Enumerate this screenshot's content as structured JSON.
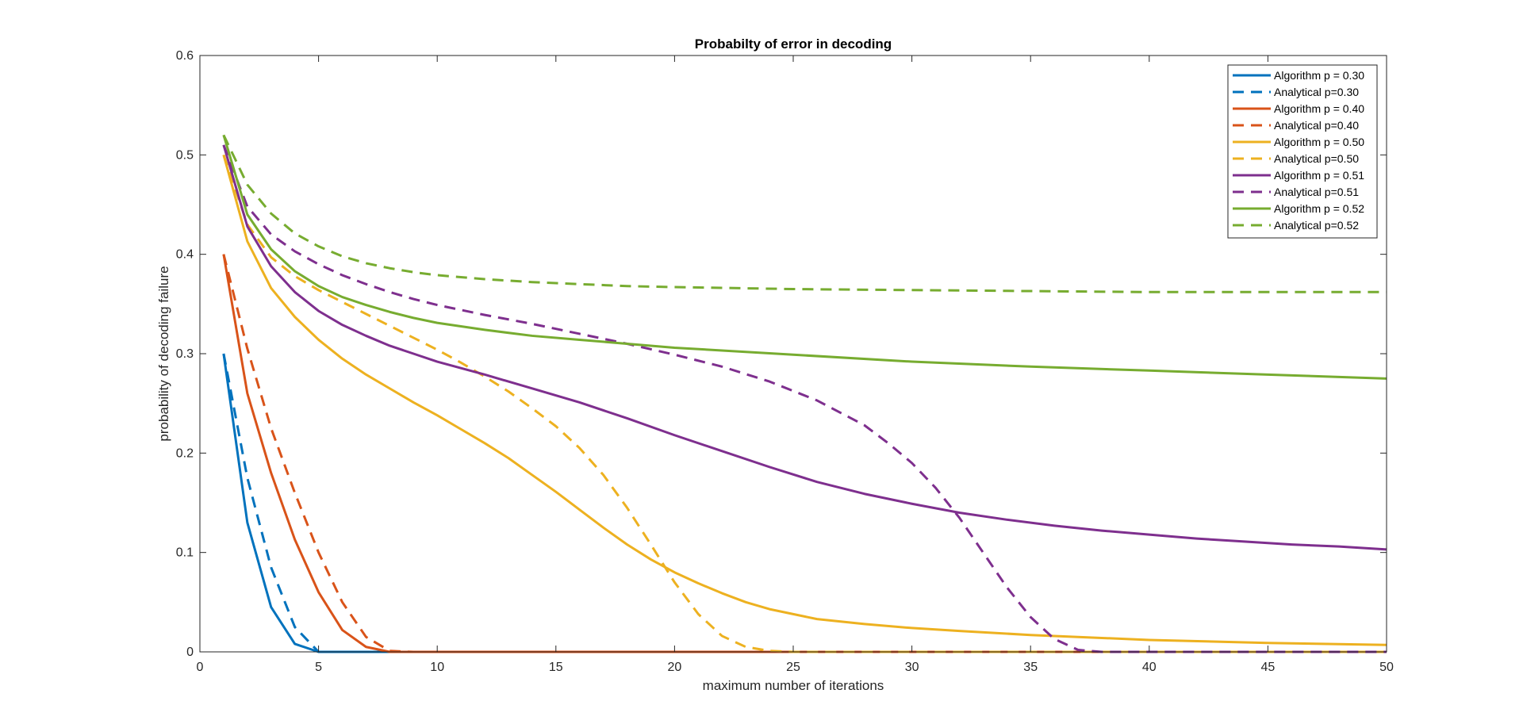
{
  "chart_data": {
    "type": "line",
    "title": "Probabilty of error in decoding",
    "xlabel": "maximum number of iterations",
    "ylabel": "probability of decoding failure",
    "xlim": [
      0,
      50
    ],
    "ylim": [
      0,
      0.6
    ],
    "xticks": [
      "0",
      "5",
      "10",
      "15",
      "20",
      "25",
      "30",
      "35",
      "40",
      "45",
      "50"
    ],
    "yticks": [
      "0",
      "0.1",
      "0.2",
      "0.3",
      "0.4",
      "0.5",
      "0.6"
    ],
    "grid": false,
    "legend_position": "top-right",
    "series": [
      {
        "name": "Algorithm p = 0.30",
        "color": "#0072BD",
        "style": "solid",
        "points": [
          [
            1,
            0.3
          ],
          [
            2,
            0.13
          ],
          [
            3,
            0.045
          ],
          [
            4,
            0.008
          ],
          [
            5,
            0.0
          ],
          [
            6,
            0.0
          ],
          [
            7,
            0.0
          ],
          [
            8,
            0.0
          ],
          [
            9,
            0.0
          ],
          [
            10,
            0.0
          ],
          [
            15,
            0.0
          ],
          [
            20,
            0.0
          ],
          [
            25,
            0.0
          ],
          [
            30,
            0.0
          ],
          [
            35,
            0.0
          ],
          [
            40,
            0.0
          ],
          [
            45,
            0.0
          ],
          [
            50,
            0.0
          ]
        ]
      },
      {
        "name": "Analytical p=0.30",
        "color": "#0072BD",
        "style": "dashed",
        "points": [
          [
            1,
            0.3
          ],
          [
            2,
            0.175
          ],
          [
            3,
            0.085
          ],
          [
            4,
            0.025
          ],
          [
            5,
            0.0
          ],
          [
            6,
            0.0
          ],
          [
            7,
            0.0
          ],
          [
            8,
            0.0
          ],
          [
            10,
            0.0
          ],
          [
            15,
            0.0
          ],
          [
            20,
            0.0
          ],
          [
            25,
            0.0
          ],
          [
            30,
            0.0
          ],
          [
            35,
            0.0
          ],
          [
            40,
            0.0
          ],
          [
            45,
            0.0
          ],
          [
            50,
            0.0
          ]
        ]
      },
      {
        "name": "Algorithm p = 0.40",
        "color": "#D95319",
        "style": "solid",
        "points": [
          [
            1,
            0.4
          ],
          [
            2,
            0.26
          ],
          [
            3,
            0.18
          ],
          [
            4,
            0.113
          ],
          [
            5,
            0.06
          ],
          [
            6,
            0.022
          ],
          [
            7,
            0.005
          ],
          [
            8,
            0.0
          ],
          [
            9,
            0.0
          ],
          [
            10,
            0.0
          ],
          [
            15,
            0.0
          ],
          [
            20,
            0.0
          ],
          [
            25,
            0.0
          ],
          [
            30,
            0.0
          ],
          [
            35,
            0.0
          ],
          [
            40,
            0.0
          ],
          [
            45,
            0.0
          ],
          [
            50,
            0.0
          ]
        ]
      },
      {
        "name": "Analytical p=0.40",
        "color": "#D95319",
        "style": "dashed",
        "points": [
          [
            1,
            0.4
          ],
          [
            2,
            0.305
          ],
          [
            3,
            0.225
          ],
          [
            4,
            0.16
          ],
          [
            5,
            0.1
          ],
          [
            6,
            0.05
          ],
          [
            7,
            0.015
          ],
          [
            8,
            0.001
          ],
          [
            9,
            0.0
          ],
          [
            10,
            0.0
          ],
          [
            15,
            0.0
          ],
          [
            20,
            0.0
          ],
          [
            25,
            0.0
          ],
          [
            30,
            0.0
          ],
          [
            35,
            0.0
          ],
          [
            40,
            0.0
          ],
          [
            45,
            0.0
          ],
          [
            50,
            0.0
          ]
        ]
      },
      {
        "name": "Algorithm p = 0.50",
        "color": "#EDB120",
        "style": "solid",
        "points": [
          [
            1,
            0.5
          ],
          [
            2,
            0.413
          ],
          [
            3,
            0.366
          ],
          [
            4,
            0.337
          ],
          [
            5,
            0.314
          ],
          [
            6,
            0.295
          ],
          [
            7,
            0.279
          ],
          [
            8,
            0.265
          ],
          [
            9,
            0.251
          ],
          [
            10,
            0.238
          ],
          [
            11,
            0.224
          ],
          [
            12,
            0.21
          ],
          [
            13,
            0.195
          ],
          [
            14,
            0.178
          ],
          [
            15,
            0.161
          ],
          [
            16,
            0.143
          ],
          [
            17,
            0.125
          ],
          [
            18,
            0.108
          ],
          [
            19,
            0.093
          ],
          [
            20,
            0.08
          ],
          [
            21,
            0.069
          ],
          [
            22,
            0.059
          ],
          [
            23,
            0.05
          ],
          [
            24,
            0.043
          ],
          [
            25,
            0.038
          ],
          [
            26,
            0.033
          ],
          [
            28,
            0.028
          ],
          [
            30,
            0.024
          ],
          [
            32,
            0.021
          ],
          [
            35,
            0.017
          ],
          [
            40,
            0.012
          ],
          [
            45,
            0.009
          ],
          [
            50,
            0.007
          ]
        ]
      },
      {
        "name": "Analytical p=0.50",
        "color": "#EDB120",
        "style": "dashed",
        "points": [
          [
            1,
            0.5
          ],
          [
            2,
            0.43
          ],
          [
            3,
            0.397
          ],
          [
            4,
            0.378
          ],
          [
            5,
            0.364
          ],
          [
            6,
            0.352
          ],
          [
            7,
            0.34
          ],
          [
            8,
            0.328
          ],
          [
            9,
            0.316
          ],
          [
            10,
            0.304
          ],
          [
            11,
            0.291
          ],
          [
            12,
            0.277
          ],
          [
            13,
            0.262
          ],
          [
            14,
            0.245
          ],
          [
            15,
            0.227
          ],
          [
            16,
            0.205
          ],
          [
            17,
            0.178
          ],
          [
            18,
            0.145
          ],
          [
            19,
            0.108
          ],
          [
            20,
            0.07
          ],
          [
            21,
            0.038
          ],
          [
            22,
            0.016
          ],
          [
            23,
            0.005
          ],
          [
            24,
            0.001
          ],
          [
            25,
            0.0
          ],
          [
            30,
            0.0
          ],
          [
            35,
            0.0
          ],
          [
            40,
            0.0
          ],
          [
            45,
            0.0
          ],
          [
            50,
            0.0
          ]
        ]
      },
      {
        "name": "Algorithm p = 0.51",
        "color": "#7E2F8E",
        "style": "solid",
        "points": [
          [
            1,
            0.51
          ],
          [
            2,
            0.428
          ],
          [
            3,
            0.388
          ],
          [
            4,
            0.362
          ],
          [
            5,
            0.343
          ],
          [
            6,
            0.329
          ],
          [
            7,
            0.318
          ],
          [
            8,
            0.308
          ],
          [
            9,
            0.3
          ],
          [
            10,
            0.292
          ],
          [
            12,
            0.279
          ],
          [
            14,
            0.265
          ],
          [
            16,
            0.251
          ],
          [
            18,
            0.235
          ],
          [
            20,
            0.218
          ],
          [
            22,
            0.202
          ],
          [
            24,
            0.186
          ],
          [
            26,
            0.171
          ],
          [
            28,
            0.159
          ],
          [
            30,
            0.149
          ],
          [
            32,
            0.14
          ],
          [
            34,
            0.133
          ],
          [
            36,
            0.127
          ],
          [
            38,
            0.122
          ],
          [
            40,
            0.118
          ],
          [
            42,
            0.114
          ],
          [
            44,
            0.111
          ],
          [
            46,
            0.108
          ],
          [
            48,
            0.106
          ],
          [
            50,
            0.103
          ]
        ]
      },
      {
        "name": "Analytical p=0.51",
        "color": "#7E2F8E",
        "style": "dashed",
        "points": [
          [
            1,
            0.51
          ],
          [
            2,
            0.448
          ],
          [
            3,
            0.42
          ],
          [
            4,
            0.403
          ],
          [
            5,
            0.39
          ],
          [
            6,
            0.379
          ],
          [
            7,
            0.37
          ],
          [
            8,
            0.362
          ],
          [
            9,
            0.355
          ],
          [
            10,
            0.349
          ],
          [
            12,
            0.339
          ],
          [
            14,
            0.33
          ],
          [
            16,
            0.32
          ],
          [
            18,
            0.31
          ],
          [
            20,
            0.299
          ],
          [
            22,
            0.287
          ],
          [
            24,
            0.272
          ],
          [
            26,
            0.253
          ],
          [
            28,
            0.228
          ],
          [
            29,
            0.21
          ],
          [
            30,
            0.19
          ],
          [
            31,
            0.165
          ],
          [
            32,
            0.135
          ],
          [
            33,
            0.1
          ],
          [
            34,
            0.065
          ],
          [
            35,
            0.035
          ],
          [
            36,
            0.013
          ],
          [
            37,
            0.002
          ],
          [
            38,
            0.0
          ],
          [
            40,
            0.0
          ],
          [
            45,
            0.0
          ],
          [
            50,
            0.0
          ]
        ]
      },
      {
        "name": "Algorithm p = 0.52",
        "color": "#77AC30",
        "style": "solid",
        "points": [
          [
            1,
            0.52
          ],
          [
            2,
            0.44
          ],
          [
            3,
            0.405
          ],
          [
            4,
            0.383
          ],
          [
            5,
            0.368
          ],
          [
            6,
            0.357
          ],
          [
            7,
            0.349
          ],
          [
            8,
            0.342
          ],
          [
            9,
            0.336
          ],
          [
            10,
            0.331
          ],
          [
            12,
            0.324
          ],
          [
            14,
            0.318
          ],
          [
            16,
            0.314
          ],
          [
            18,
            0.31
          ],
          [
            20,
            0.306
          ],
          [
            25,
            0.299
          ],
          [
            30,
            0.292
          ],
          [
            35,
            0.287
          ],
          [
            40,
            0.283
          ],
          [
            45,
            0.279
          ],
          [
            50,
            0.275
          ]
        ]
      },
      {
        "name": "Analytical p=0.52",
        "color": "#77AC30",
        "style": "dashed",
        "points": [
          [
            1,
            0.52
          ],
          [
            2,
            0.47
          ],
          [
            3,
            0.441
          ],
          [
            4,
            0.421
          ],
          [
            5,
            0.408
          ],
          [
            6,
            0.398
          ],
          [
            7,
            0.391
          ],
          [
            8,
            0.386
          ],
          [
            9,
            0.382
          ],
          [
            10,
            0.379
          ],
          [
            12,
            0.375
          ],
          [
            14,
            0.372
          ],
          [
            16,
            0.37
          ],
          [
            18,
            0.368
          ],
          [
            20,
            0.367
          ],
          [
            25,
            0.365
          ],
          [
            30,
            0.364
          ],
          [
            35,
            0.363
          ],
          [
            40,
            0.362
          ],
          [
            45,
            0.362
          ],
          [
            50,
            0.362
          ]
        ]
      }
    ]
  }
}
